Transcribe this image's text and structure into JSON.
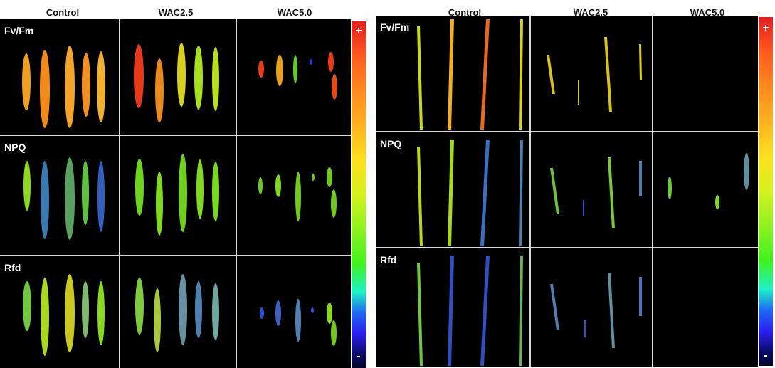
{
  "left_panel": {
    "columns": [
      "Control",
      "WAC2.5",
      "WAC5.0"
    ],
    "rows": [
      "Fv/Fm",
      "NPQ",
      "Rfd"
    ],
    "colorbar": {
      "plus": "+",
      "minus": "-"
    }
  },
  "right_panel": {
    "columns": [
      "Control",
      "WAC2.5",
      "WAC5.0"
    ],
    "rows": [
      "Fv/Fm",
      "NPQ",
      "Rfd"
    ],
    "colorbar": {
      "plus": "+",
      "minus": "-"
    }
  },
  "colors": {
    "background_black": "#000000",
    "divider": "#d9d9d9",
    "label_white": "#ffffff"
  }
}
